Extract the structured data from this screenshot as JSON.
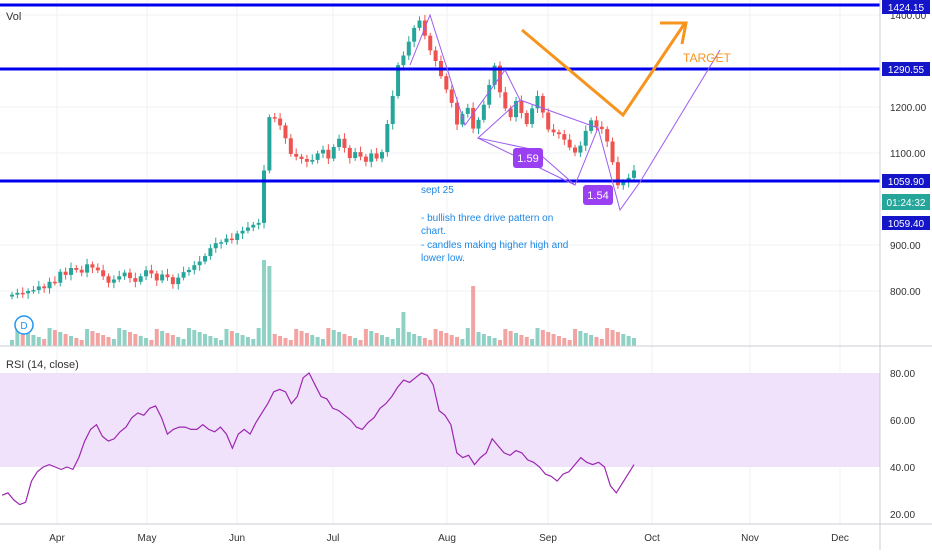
{
  "colors": {
    "up": "#26a69a",
    "down": "#ef5350",
    "vol_up": "#8fd1c4",
    "vol_down": "#f3a3a1",
    "level_line": "#0000ee",
    "price_badge": "#1414c8",
    "current_badge": "#26a69a",
    "rsi_line": "#9c27b0",
    "rsi_band": "#f0e2fb",
    "pattern": "#9c5cf0",
    "pattern_badge": "#9b3ff2",
    "arrow": "#f7941d",
    "note": "#1e88e5"
  },
  "price_panel": {
    "vol_label": "Vol",
    "y_ticks": [
      "1400.00",
      "1200.00",
      "1100.00",
      "900.00",
      "800.00"
    ],
    "level_labels": [
      "1424.15",
      "1290.55",
      "1059.90"
    ],
    "current_price_label": "1059.90",
    "timer_label": "01:24:32",
    "below_label": "1059.40",
    "target_label": "TARGET",
    "ratio_labels": [
      "1.59",
      "1.54"
    ],
    "note_lines": [
      "sept 25",
      "",
      "- bullish three drive pattern on",
      "chart.",
      "- candles making higher high and",
      "lower low."
    ],
    "d_badge": "D"
  },
  "rsi_panel": {
    "title": "RSI (14, close)",
    "y_ticks": [
      "80.00",
      "60.00",
      "40.00",
      "20.00"
    ],
    "band": [
      40,
      80
    ]
  },
  "time_axis": {
    "labels": [
      "Apr",
      "May",
      "Jun",
      "Jul",
      "Aug",
      "Sep",
      "Oct",
      "Nov",
      "Dec"
    ]
  },
  "chart_data": {
    "type": "candlestick",
    "title": "",
    "xlabel": "",
    "ylabel": "",
    "ylim": [
      745,
      1430
    ],
    "horizontal_levels": [
      1424.15,
      1290.55,
      1059.9
    ],
    "price_series": [
      792,
      796,
      795,
      800,
      802,
      810,
      806,
      820,
      818,
      842,
      835,
      850,
      846,
      840,
      858,
      851,
      845,
      832,
      818,
      825,
      832,
      840,
      828,
      820,
      832,
      845,
      838,
      823,
      836,
      830,
      815,
      829,
      841,
      846,
      856,
      864,
      876,
      893,
      904,
      906,
      914,
      911,
      925,
      931,
      938,
      944,
      948,
      1062,
      1178,
      1175,
      1160,
      1132,
      1098,
      1092,
      1087,
      1081,
      1085,
      1099,
      1107,
      1088,
      1113,
      1131,
      1111,
      1089,
      1102,
      1092,
      1081,
      1099,
      1088,
      1102,
      1163,
      1224,
      1291,
      1312,
      1342,
      1372,
      1388,
      1355,
      1323,
      1300,
      1267,
      1238,
      1209,
      1162,
      1185,
      1198,
      1153,
      1172,
      1205,
      1248,
      1290,
      1232,
      1197,
      1178,
      1213,
      1187,
      1163,
      1197,
      1224,
      1188,
      1151,
      1145,
      1141,
      1129,
      1112,
      1101,
      1116,
      1148,
      1171,
      1157,
      1152,
      1125,
      1080,
      1030,
      1037,
      1046,
      1062
    ],
    "rsi_series": [
      28,
      29,
      26,
      24,
      25,
      34,
      38,
      40,
      41,
      40,
      39,
      40,
      39,
      44,
      51,
      56,
      58,
      53,
      51,
      52,
      55,
      57,
      61,
      63,
      62,
      65,
      66,
      61,
      54,
      56,
      57,
      57,
      56,
      56,
      58,
      56,
      55,
      57,
      54,
      48,
      54,
      56,
      54,
      59,
      63,
      67,
      72,
      73,
      72,
      67,
      70,
      78,
      80,
      75,
      70,
      69,
      65,
      64,
      62,
      60,
      57,
      56,
      59,
      61,
      65,
      67,
      70,
      74,
      77,
      76,
      78,
      80,
      79,
      75,
      64,
      62,
      58,
      46,
      44,
      45,
      41,
      44,
      46,
      52,
      49,
      46,
      45,
      47,
      46,
      43,
      42,
      40,
      37,
      36,
      34,
      37,
      38,
      41,
      44,
      42,
      41,
      42,
      40,
      32,
      29,
      33,
      37,
      41
    ],
    "rsi_ylim": [
      18,
      88
    ],
    "x_labels": [
      "Apr",
      "May",
      "Jun",
      "Jul",
      "Aug",
      "Sep",
      "Oct",
      "Nov",
      "Dec"
    ]
  }
}
